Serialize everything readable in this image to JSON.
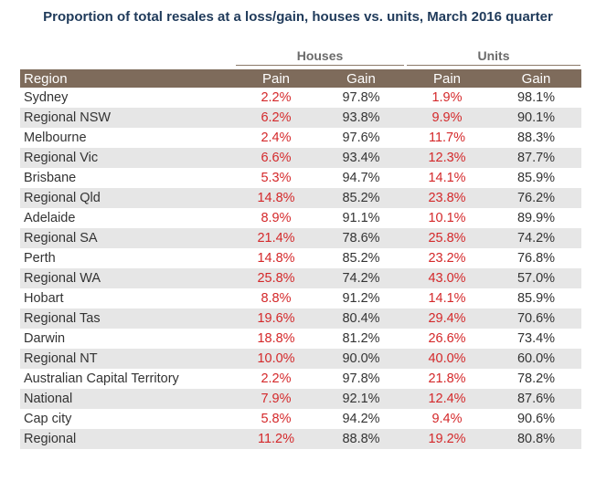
{
  "title": "Proportion of total resales at a loss/gain, houses vs. units, March 2016 quarter",
  "groups": {
    "houses": "Houses",
    "units": "Units"
  },
  "columns": {
    "region": "Region",
    "pain": "Pain",
    "gain": "Gain"
  },
  "rows": [
    {
      "region": "Sydney",
      "h_pain": "2.2%",
      "h_gain": "97.8%",
      "u_pain": "1.9%",
      "u_gain": "98.1%"
    },
    {
      "region": "Regional NSW",
      "h_pain": "6.2%",
      "h_gain": "93.8%",
      "u_pain": "9.9%",
      "u_gain": "90.1%"
    },
    {
      "region": "Melbourne",
      "h_pain": "2.4%",
      "h_gain": "97.6%",
      "u_pain": "11.7%",
      "u_gain": "88.3%"
    },
    {
      "region": "Regional Vic",
      "h_pain": "6.6%",
      "h_gain": "93.4%",
      "u_pain": "12.3%",
      "u_gain": "87.7%"
    },
    {
      "region": "Brisbane",
      "h_pain": "5.3%",
      "h_gain": "94.7%",
      "u_pain": "14.1%",
      "u_gain": "85.9%"
    },
    {
      "region": "Regional Qld",
      "h_pain": "14.8%",
      "h_gain": "85.2%",
      "u_pain": "23.8%",
      "u_gain": "76.2%"
    },
    {
      "region": "Adelaide",
      "h_pain": "8.9%",
      "h_gain": "91.1%",
      "u_pain": "10.1%",
      "u_gain": "89.9%"
    },
    {
      "region": "Regional SA",
      "h_pain": "21.4%",
      "h_gain": "78.6%",
      "u_pain": "25.8%",
      "u_gain": "74.2%"
    },
    {
      "region": "Perth",
      "h_pain": "14.8%",
      "h_gain": "85.2%",
      "u_pain": "23.2%",
      "u_gain": "76.8%"
    },
    {
      "region": "Regional WA",
      "h_pain": "25.8%",
      "h_gain": "74.2%",
      "u_pain": "43.0%",
      "u_gain": "57.0%"
    },
    {
      "region": "Hobart",
      "h_pain": "8.8%",
      "h_gain": "91.2%",
      "u_pain": "14.1%",
      "u_gain": "85.9%"
    },
    {
      "region": "Regional Tas",
      "h_pain": "19.6%",
      "h_gain": "80.4%",
      "u_pain": "29.4%",
      "u_gain": "70.6%"
    },
    {
      "region": "Darwin",
      "h_pain": "18.8%",
      "h_gain": "81.2%",
      "u_pain": "26.6%",
      "u_gain": "73.4%"
    },
    {
      "region": "Regional NT",
      "h_pain": "10.0%",
      "h_gain": "90.0%",
      "u_pain": "40.0%",
      "u_gain": "60.0%"
    },
    {
      "region": "Australian Capital Territory",
      "h_pain": "2.2%",
      "h_gain": "97.8%",
      "u_pain": "21.8%",
      "u_gain": "78.2%"
    },
    {
      "region": "National",
      "h_pain": "7.9%",
      "h_gain": "92.1%",
      "u_pain": "12.4%",
      "u_gain": "87.6%"
    },
    {
      "region": "Cap city",
      "h_pain": "5.8%",
      "h_gain": "94.2%",
      "u_pain": "9.4%",
      "u_gain": "90.6%"
    },
    {
      "region": "Regional",
      "h_pain": "11.2%",
      "h_gain": "88.8%",
      "u_pain": "19.2%",
      "u_gain": "80.8%"
    }
  ],
  "colors": {
    "title": "#1f3a5a",
    "header_bg": "#7e6b5b",
    "pain": "#d4282a",
    "alt_row": "#e6e6e6"
  }
}
